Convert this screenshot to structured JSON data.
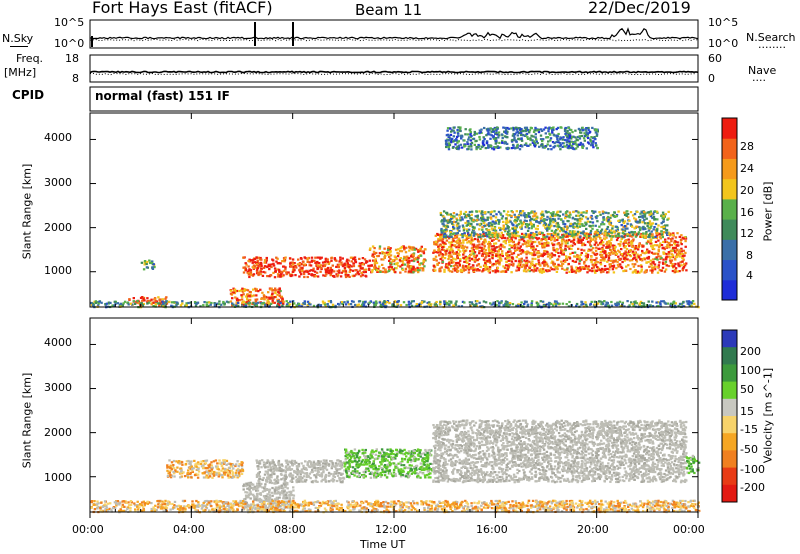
{
  "header": {
    "station": "Fort Hays East (fitACF)",
    "beam": "Beam 11",
    "date": "22/Dec/2019"
  },
  "strip_nsky": {
    "left_label": "N.Sky",
    "right_label": "N.Search",
    "right_label_dots": "........",
    "left_ticks": [
      "10^5",
      "10^0"
    ],
    "right_ticks": [
      "10^5",
      "10^0"
    ]
  },
  "strip_freq": {
    "left_label_line1": "Freq.",
    "left_label_line2": "[MHz]",
    "right_label": "Nave",
    "right_label_dots": "....",
    "left_ticks": [
      "18",
      "8"
    ],
    "right_ticks": [
      "60",
      "0"
    ]
  },
  "cpid": {
    "label": "CPID",
    "value": "normal (fast) 151 IF"
  },
  "colors": {
    "power_scale": [
      "#1f2dd8",
      "#2a52c8",
      "#3a6fa8",
      "#3f8a5a",
      "#59b04a",
      "#f2c51c",
      "#f59a1b",
      "#f2631a",
      "#ee1c10"
    ],
    "velocity_scale": [
      "#2c3ab9",
      "#317a4f",
      "#3c9a3c",
      "#68d12b",
      "#c8c8c0",
      "#f7d36b",
      "#f5a623",
      "#f08020",
      "#e83b15",
      "#e31a12"
    ],
    "ground_scatter": "#bdbdb5"
  },
  "chart_data": [
    {
      "type": "heatmap",
      "name": "power-panel",
      "ylabel": "Slant Range [km]",
      "ylim": [
        200,
        4600
      ],
      "y_ticks": [
        "1000",
        "2000",
        "3000",
        "4000"
      ],
      "colorbar_label": "Power [dB]",
      "colorbar_ticks": [
        "4",
        "8",
        "12",
        "16",
        "20",
        "24",
        "28"
      ],
      "colorbar_range": [
        0,
        32
      ],
      "echo_regions": [
        {
          "t0": 2.0,
          "t1": 2.5,
          "r0": 1050,
          "r1": 1300,
          "level": 0.45
        },
        {
          "t0": 1.5,
          "t1": 3.0,
          "r0": 260,
          "r1": 450,
          "level": 0.85
        },
        {
          "t0": 5.5,
          "t1": 7.6,
          "r0": 250,
          "r1": 650,
          "level": 0.8
        },
        {
          "t0": 6.0,
          "t1": 11.0,
          "r0": 900,
          "r1": 1350,
          "level": 0.95
        },
        {
          "t0": 11.0,
          "t1": 13.2,
          "r0": 1000,
          "r1": 1600,
          "level": 0.75
        },
        {
          "t0": 13.5,
          "t1": 23.5,
          "r0": 1000,
          "r1": 1900,
          "level": 0.8
        },
        {
          "t0": 13.8,
          "t1": 22.8,
          "r0": 1800,
          "r1": 2400,
          "level": 0.45
        },
        {
          "t0": 0.0,
          "t1": 24.0,
          "r0": 220,
          "r1": 360,
          "level": 0.4
        },
        {
          "t0": 14.0,
          "t1": 20.0,
          "r0": 3800,
          "r1": 4300,
          "level": 0.3
        }
      ]
    },
    {
      "type": "heatmap",
      "name": "velocity-panel",
      "ylabel": "Slant Range [km]",
      "ylim": [
        200,
        4600
      ],
      "y_ticks": [
        "1000",
        "2000",
        "3000",
        "4000"
      ],
      "colorbar_label": "Velocity [m s^-1]",
      "colorbar_ticks": [
        "200",
        "100",
        "50",
        "15",
        "-15",
        "-50",
        "-100",
        "-200"
      ],
      "colorbar_range": [
        -250,
        250
      ],
      "echo_regions": [
        {
          "t0": 6.0,
          "t1": 8.0,
          "r0": 250,
          "r1": 900,
          "kind": "ground"
        },
        {
          "t0": 6.5,
          "t1": 10.0,
          "r0": 900,
          "r1": 1400,
          "kind": "ground"
        },
        {
          "t0": 10.0,
          "t1": 13.5,
          "r0": 1000,
          "r1": 1650,
          "kind": "green"
        },
        {
          "t0": 3.0,
          "t1": 6.0,
          "r0": 1000,
          "r1": 1400,
          "kind": "orange"
        },
        {
          "t0": 13.5,
          "t1": 23.5,
          "r0": 900,
          "r1": 2300,
          "kind": "ground"
        },
        {
          "t0": 23.5,
          "t1": 24.0,
          "r0": 1100,
          "r1": 1500,
          "kind": "green"
        },
        {
          "t0": 0.0,
          "t1": 24.0,
          "r0": 220,
          "r1": 480,
          "kind": "orange"
        }
      ]
    }
  ],
  "x_axis": {
    "ticks": [
      "00:00",
      "04:00",
      "08:00",
      "12:00",
      "16:00",
      "20:00",
      "00:00"
    ],
    "label": "Time UT",
    "range_hours": [
      0,
      24
    ]
  }
}
